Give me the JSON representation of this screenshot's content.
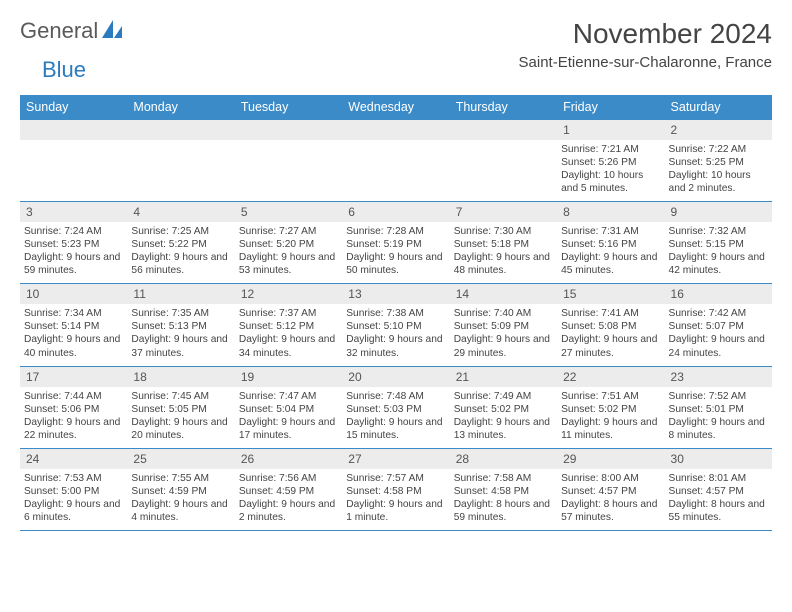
{
  "brand": {
    "text1": "General",
    "text2": "Blue",
    "icon_color": "#2b7bbf"
  },
  "title": {
    "month": "November 2024",
    "location": "Saint-Etienne-sur-Chalaronne, France",
    "title_fontsize": 28,
    "location_fontsize": 15
  },
  "style": {
    "header_bg": "#3b8bc9",
    "header_fg": "#ffffff",
    "daynum_bg": "#ececec",
    "border_color": "#3b8bc9",
    "body_bg": "#ffffff",
    "text_color": "#444444",
    "body_fontsize": 10.2,
    "header_fontsize": 12.5,
    "daynum_fontsize": 12
  },
  "weekdays": [
    "Sunday",
    "Monday",
    "Tuesday",
    "Wednesday",
    "Thursday",
    "Friday",
    "Saturday"
  ],
  "weeks": [
    [
      {
        "num": "",
        "sunrise": "",
        "sunset": "",
        "daylight": ""
      },
      {
        "num": "",
        "sunrise": "",
        "sunset": "",
        "daylight": ""
      },
      {
        "num": "",
        "sunrise": "",
        "sunset": "",
        "daylight": ""
      },
      {
        "num": "",
        "sunrise": "",
        "sunset": "",
        "daylight": ""
      },
      {
        "num": "",
        "sunrise": "",
        "sunset": "",
        "daylight": ""
      },
      {
        "num": "1",
        "sunrise": "Sunrise: 7:21 AM",
        "sunset": "Sunset: 5:26 PM",
        "daylight": "Daylight: 10 hours and 5 minutes."
      },
      {
        "num": "2",
        "sunrise": "Sunrise: 7:22 AM",
        "sunset": "Sunset: 5:25 PM",
        "daylight": "Daylight: 10 hours and 2 minutes."
      }
    ],
    [
      {
        "num": "3",
        "sunrise": "Sunrise: 7:24 AM",
        "sunset": "Sunset: 5:23 PM",
        "daylight": "Daylight: 9 hours and 59 minutes."
      },
      {
        "num": "4",
        "sunrise": "Sunrise: 7:25 AM",
        "sunset": "Sunset: 5:22 PM",
        "daylight": "Daylight: 9 hours and 56 minutes."
      },
      {
        "num": "5",
        "sunrise": "Sunrise: 7:27 AM",
        "sunset": "Sunset: 5:20 PM",
        "daylight": "Daylight: 9 hours and 53 minutes."
      },
      {
        "num": "6",
        "sunrise": "Sunrise: 7:28 AM",
        "sunset": "Sunset: 5:19 PM",
        "daylight": "Daylight: 9 hours and 50 minutes."
      },
      {
        "num": "7",
        "sunrise": "Sunrise: 7:30 AM",
        "sunset": "Sunset: 5:18 PM",
        "daylight": "Daylight: 9 hours and 48 minutes."
      },
      {
        "num": "8",
        "sunrise": "Sunrise: 7:31 AM",
        "sunset": "Sunset: 5:16 PM",
        "daylight": "Daylight: 9 hours and 45 minutes."
      },
      {
        "num": "9",
        "sunrise": "Sunrise: 7:32 AM",
        "sunset": "Sunset: 5:15 PM",
        "daylight": "Daylight: 9 hours and 42 minutes."
      }
    ],
    [
      {
        "num": "10",
        "sunrise": "Sunrise: 7:34 AM",
        "sunset": "Sunset: 5:14 PM",
        "daylight": "Daylight: 9 hours and 40 minutes."
      },
      {
        "num": "11",
        "sunrise": "Sunrise: 7:35 AM",
        "sunset": "Sunset: 5:13 PM",
        "daylight": "Daylight: 9 hours and 37 minutes."
      },
      {
        "num": "12",
        "sunrise": "Sunrise: 7:37 AM",
        "sunset": "Sunset: 5:12 PM",
        "daylight": "Daylight: 9 hours and 34 minutes."
      },
      {
        "num": "13",
        "sunrise": "Sunrise: 7:38 AM",
        "sunset": "Sunset: 5:10 PM",
        "daylight": "Daylight: 9 hours and 32 minutes."
      },
      {
        "num": "14",
        "sunrise": "Sunrise: 7:40 AM",
        "sunset": "Sunset: 5:09 PM",
        "daylight": "Daylight: 9 hours and 29 minutes."
      },
      {
        "num": "15",
        "sunrise": "Sunrise: 7:41 AM",
        "sunset": "Sunset: 5:08 PM",
        "daylight": "Daylight: 9 hours and 27 minutes."
      },
      {
        "num": "16",
        "sunrise": "Sunrise: 7:42 AM",
        "sunset": "Sunset: 5:07 PM",
        "daylight": "Daylight: 9 hours and 24 minutes."
      }
    ],
    [
      {
        "num": "17",
        "sunrise": "Sunrise: 7:44 AM",
        "sunset": "Sunset: 5:06 PM",
        "daylight": "Daylight: 9 hours and 22 minutes."
      },
      {
        "num": "18",
        "sunrise": "Sunrise: 7:45 AM",
        "sunset": "Sunset: 5:05 PM",
        "daylight": "Daylight: 9 hours and 20 minutes."
      },
      {
        "num": "19",
        "sunrise": "Sunrise: 7:47 AM",
        "sunset": "Sunset: 5:04 PM",
        "daylight": "Daylight: 9 hours and 17 minutes."
      },
      {
        "num": "20",
        "sunrise": "Sunrise: 7:48 AM",
        "sunset": "Sunset: 5:03 PM",
        "daylight": "Daylight: 9 hours and 15 minutes."
      },
      {
        "num": "21",
        "sunrise": "Sunrise: 7:49 AM",
        "sunset": "Sunset: 5:02 PM",
        "daylight": "Daylight: 9 hours and 13 minutes."
      },
      {
        "num": "22",
        "sunrise": "Sunrise: 7:51 AM",
        "sunset": "Sunset: 5:02 PM",
        "daylight": "Daylight: 9 hours and 11 minutes."
      },
      {
        "num": "23",
        "sunrise": "Sunrise: 7:52 AM",
        "sunset": "Sunset: 5:01 PM",
        "daylight": "Daylight: 9 hours and 8 minutes."
      }
    ],
    [
      {
        "num": "24",
        "sunrise": "Sunrise: 7:53 AM",
        "sunset": "Sunset: 5:00 PM",
        "daylight": "Daylight: 9 hours and 6 minutes."
      },
      {
        "num": "25",
        "sunrise": "Sunrise: 7:55 AM",
        "sunset": "Sunset: 4:59 PM",
        "daylight": "Daylight: 9 hours and 4 minutes."
      },
      {
        "num": "26",
        "sunrise": "Sunrise: 7:56 AM",
        "sunset": "Sunset: 4:59 PM",
        "daylight": "Daylight: 9 hours and 2 minutes."
      },
      {
        "num": "27",
        "sunrise": "Sunrise: 7:57 AM",
        "sunset": "Sunset: 4:58 PM",
        "daylight": "Daylight: 9 hours and 1 minute."
      },
      {
        "num": "28",
        "sunrise": "Sunrise: 7:58 AM",
        "sunset": "Sunset: 4:58 PM",
        "daylight": "Daylight: 8 hours and 59 minutes."
      },
      {
        "num": "29",
        "sunrise": "Sunrise: 8:00 AM",
        "sunset": "Sunset: 4:57 PM",
        "daylight": "Daylight: 8 hours and 57 minutes."
      },
      {
        "num": "30",
        "sunrise": "Sunrise: 8:01 AM",
        "sunset": "Sunset: 4:57 PM",
        "daylight": "Daylight: 8 hours and 55 minutes."
      }
    ]
  ]
}
